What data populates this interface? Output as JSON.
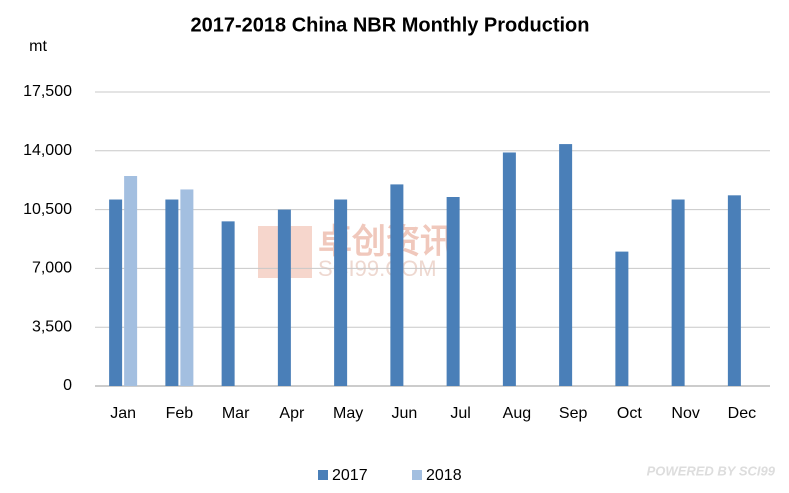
{
  "chart_data": {
    "type": "bar",
    "title": "2017-2018 China NBR Monthly Production",
    "y_label": "mt",
    "categories": [
      "Jan",
      "Feb",
      "Mar",
      "Apr",
      "May",
      "Jun",
      "Jul",
      "Aug",
      "Sep",
      "Oct",
      "Nov",
      "Dec"
    ],
    "series": [
      {
        "name": "2017",
        "color": "#4a7fb8",
        "values": [
          11100,
          11100,
          9800,
          10500,
          11100,
          12000,
          11250,
          13900,
          14400,
          8000,
          11100,
          11350
        ]
      },
      {
        "name": "2018",
        "color": "#a3bfe0",
        "values": [
          12500,
          11700,
          null,
          null,
          null,
          null,
          null,
          null,
          null,
          null,
          null,
          null
        ]
      }
    ],
    "ylim": [
      0,
      17500
    ],
    "yticks": [
      0,
      {
        "value": 3500,
        "label": "3,500"
      },
      {
        "value": 7000,
        "label": "7,000"
      },
      {
        "value": 10500,
        "label": "10,500"
      },
      {
        "value": 14000,
        "label": "14,000"
      },
      {
        "value": 17500,
        "label": "17,500"
      }
    ],
    "grid": true,
    "watermark": [
      "卓创资讯",
      "SCI99.COM"
    ],
    "footer": "POWERED BY SCI99"
  }
}
